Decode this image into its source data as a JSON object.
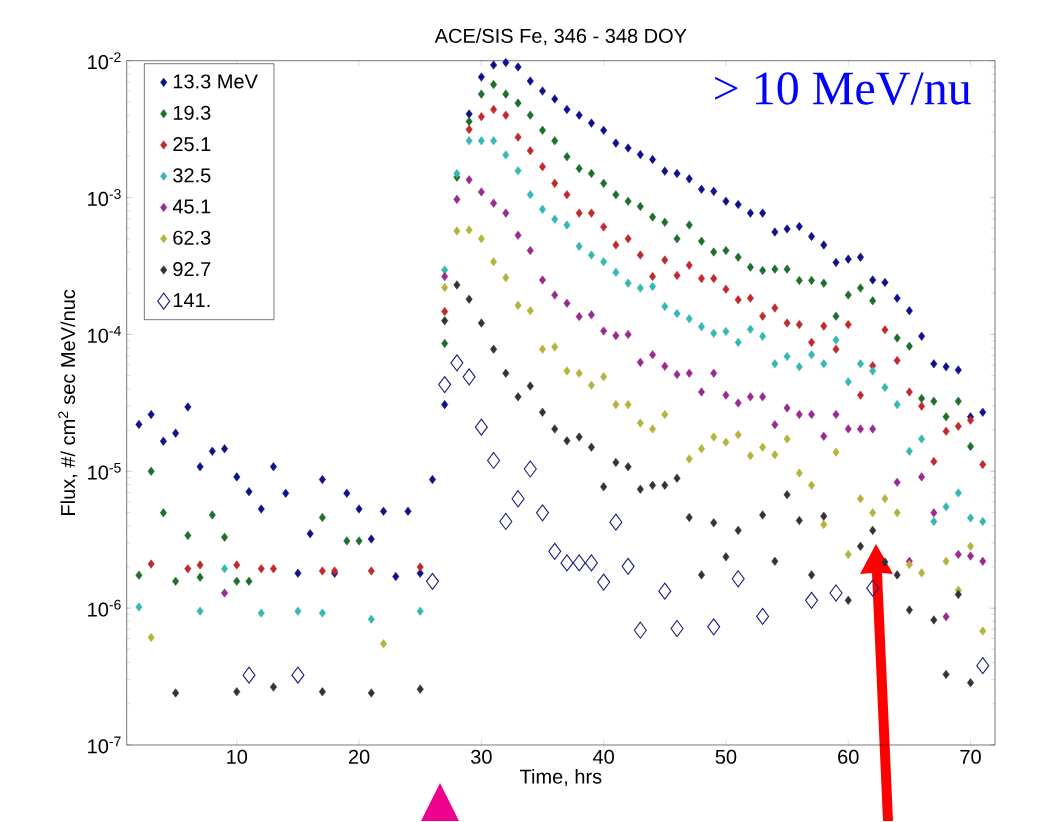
{
  "chart_data": {
    "type": "scatter",
    "title": "ACE/SIS Fe, 346 - 348  DOY",
    "xlabel": "Time, hrs",
    "ylabel": "Flux, #/ cm$^{2}$ sec MeV/nuc",
    "annotations": [
      "> 10 MeV/nu"
    ],
    "log": "y",
    "marker": "diamond",
    "legend": "top left",
    "xlim": [
      1,
      72
    ],
    "xticks": [
      10,
      20,
      30,
      40,
      50,
      60,
      70
    ],
    "ylim": [
      1e-07,
      0.01
    ],
    "yticks": [
      {
        "value": 1e-07,
        "label": "10$^{-7}$"
      },
      {
        "value": 1e-06,
        "label": "10$^{-6}$"
      },
      {
        "value": 1e-05,
        "label": "10$^{-5}$"
      },
      {
        "value": 0.0001,
        "label": "10$^{-4}$"
      },
      {
        "value": 0.001,
        "label": "10$^{-3}$"
      },
      {
        "value": 0.01,
        "label": "10$^{-2}$"
      }
    ],
    "series": [
      {
        "name": "13.3 MeV",
        "color": "#10108c",
        "x": [
          2,
          3,
          4,
          5,
          6,
          7,
          8,
          9,
          10,
          11,
          12,
          13,
          14,
          15,
          16,
          17,
          18,
          19,
          20,
          21,
          22,
          23,
          24,
          25,
          26,
          27,
          29,
          30,
          31,
          32,
          33,
          34,
          35,
          36,
          37,
          38,
          39,
          40,
          41,
          42,
          43,
          44,
          45,
          46,
          47,
          48,
          49,
          50,
          51,
          52,
          53,
          54,
          55,
          56,
          57,
          58,
          59,
          60,
          61,
          62,
          63,
          64,
          65,
          66,
          67,
          68,
          69,
          70,
          71
        ],
        "values": [
          2.2e-05,
          2.6e-05,
          1.66e-05,
          1.9e-05,
          2.95e-05,
          1.08e-05,
          1.4e-05,
          1.46e-05,
          9.1e-06,
          7.1e-06,
          5.3e-06,
          1.08e-05,
          6.9e-06,
          1.8e-06,
          3.5e-06,
          8.7e-06,
          1.8e-06,
          6.9e-06,
          5.3e-06,
          3.2e-06,
          5.1e-06,
          1.7e-06,
          5.1e-06,
          1.8e-06,
          8.7e-06,
          3.07e-05,
          0.00408,
          0.0076,
          0.0093,
          0.0097,
          0.009,
          0.0071,
          0.006,
          0.00525,
          0.0044,
          0.004,
          0.0035,
          0.0031,
          0.0025,
          0.0023,
          0.00206,
          0.0019,
          0.00156,
          0.0015,
          0.00137,
          0.00115,
          0.00111,
          0.00094,
          0.00089,
          0.00077,
          0.00077,
          0.00056,
          0.00059,
          0.000615,
          0.00052,
          0.00045,
          0.000336,
          0.000355,
          0.000367,
          0.00025,
          0.00024,
          0.000184,
          0.000149,
          9.7e-05,
          6.1e-05,
          5.8e-05,
          5.5e-05,
          2.5e-05,
          2.7e-05
        ]
      },
      {
        "name": "19.3",
        "color": "#1f6e2a",
        "x": [
          2,
          3,
          4,
          5,
          6,
          7,
          8,
          9,
          10,
          11,
          17,
          19,
          20,
          27,
          28,
          29,
          30,
          31,
          32,
          33,
          34,
          35,
          36,
          37,
          38,
          39,
          40,
          41,
          42,
          43,
          44,
          45,
          46,
          47,
          48,
          49,
          50,
          51,
          52,
          53,
          54,
          55,
          56,
          57,
          58,
          59,
          60,
          61,
          62,
          64,
          65,
          66,
          67,
          68,
          69,
          70
        ],
        "values": [
          1.74e-06,
          1e-05,
          4.97e-06,
          1.57e-06,
          3.4e-06,
          1.68e-06,
          4.8e-06,
          3.3e-06,
          1.57e-06,
          1.57e-06,
          4.6e-06,
          3.1e-06,
          3.1e-06,
          8.6e-05,
          0.00141,
          0.0036,
          0.0057,
          0.0067,
          0.0057,
          0.0049,
          0.004,
          0.0031,
          0.0026,
          0.00199,
          0.00163,
          0.0015,
          0.00127,
          0.00105,
          0.00094,
          0.00086,
          0.00072,
          0.00066,
          0.0005,
          0.00063,
          0.00048,
          0.0004,
          0.00041,
          0.000367,
          0.00031,
          0.000293,
          0.0003,
          0.0003,
          0.000248,
          0.000248,
          0.000237,
          0.000136,
          0.000194,
          0.000218,
          0.000176,
          9.4e-05,
          8.2e-05,
          3.4e-05,
          3.25e-05,
          2.5e-05,
          3.25e-05,
          1.52e-05
        ]
      },
      {
        "name": "25.1",
        "color": "#c02a2e",
        "x": [
          3,
          6,
          7,
          10,
          12,
          13,
          17,
          18,
          21,
          25,
          27,
          29,
          30,
          31,
          32,
          33,
          34,
          35,
          36,
          37,
          38,
          39,
          40,
          41,
          42,
          43,
          44,
          45,
          46,
          47,
          48,
          49,
          50,
          51,
          52,
          53,
          54,
          55,
          56,
          57,
          58,
          59,
          60,
          61,
          62,
          63,
          64,
          65,
          66,
          67,
          68,
          69,
          70,
          71
        ],
        "values": [
          2.1e-06,
          1.94e-06,
          2.07e-06,
          2.07e-06,
          1.94e-06,
          1.94e-06,
          1.87e-06,
          1.87e-06,
          1.87e-06,
          2e-06,
          0.000147,
          0.00315,
          0.0039,
          0.0044,
          0.004,
          0.00276,
          0.0022,
          0.00168,
          0.00127,
          0.00105,
          0.00077,
          0.00077,
          0.00061,
          0.00045,
          0.0005,
          0.00038,
          0.000265,
          0.00035,
          0.00027,
          0.00032,
          0.000256,
          0.000256,
          0.000214,
          0.000179,
          0.000184,
          0.000136,
          0.000156,
          0.000121,
          0.000118,
          8.75e-05,
          0.000115,
          7.8e-05,
          0.000118,
          3.6e-05,
          5.9e-05,
          0.000108,
          6.45e-05,
          3.8e-05,
          2.99e-05,
          1.18e-05,
          1.96e-05,
          2.13e-05,
          2.36e-05,
          1.12e-05
        ]
      },
      {
        "name": "32.5",
        "color": "#35b8b4",
        "x": [
          2,
          7,
          9,
          12,
          15,
          17,
          21,
          25,
          27,
          28,
          29,
          30,
          31,
          32,
          33,
          34,
          35,
          36,
          37,
          38,
          39,
          40,
          41,
          42,
          43,
          44,
          45,
          46,
          47,
          48,
          49,
          50,
          51,
          52,
          53,
          54,
          55,
          56,
          57,
          58,
          59,
          60,
          61,
          62,
          63,
          64,
          65,
          66,
          67,
          68,
          69,
          70,
          71
        ],
        "values": [
          1.02e-06,
          9.5e-07,
          1.94e-06,
          9.2e-07,
          9.5e-07,
          9.2e-07,
          8.3e-07,
          9.5e-07,
          0.000296,
          0.0015,
          0.0026,
          0.0026,
          0.0026,
          0.00205,
          0.00157,
          0.00105,
          0.00082,
          0.000695,
          0.00063,
          0.00044,
          0.00038,
          0.00034,
          0.000284,
          0.000237,
          0.000218,
          0.000224,
          0.00016,
          0.000142,
          0.00013,
          0.000114,
          0.000102,
          0.000105,
          8.75e-05,
          0.000109,
          9.7e-05,
          6.1e-05,
          6.9e-05,
          5.8e-05,
          7.1e-05,
          6.1e-05,
          9.1e-05,
          4.5e-05,
          6.1e-05,
          5.4e-05,
          4.1e-05,
          3.07e-05,
          1.4e-05,
          1.72e-05,
          4.3e-06,
          5.5e-06,
          6.95e-06,
          4.56e-06,
          4.3e-06
        ]
      },
      {
        "name": "45.1",
        "color": "#982a90",
        "x": [
          9,
          27,
          28,
          29,
          30,
          31,
          32,
          33,
          34,
          35,
          36,
          37,
          38,
          39,
          40,
          41,
          42,
          43,
          44,
          45,
          46,
          47,
          48,
          49,
          50,
          51,
          52,
          53,
          54,
          55,
          56,
          57,
          58,
          59,
          60,
          61,
          62,
          64,
          65,
          66,
          67,
          68,
          69,
          70,
          71
        ],
        "values": [
          1.29e-06,
          0.000265,
          0.00097,
          0.00135,
          0.0011,
          0.00091,
          0.00077,
          0.00053,
          0.00041,
          0.00025,
          0.000194,
          0.000169,
          0.000135,
          0.000139,
          0.000106,
          9.8e-05,
          0.0001,
          6.25e-05,
          7.1e-05,
          5.85e-05,
          5.1e-05,
          5.2e-05,
          3.8e-05,
          5.2e-05,
          3.6e-05,
          3.15e-05,
          3.5e-05,
          3.5e-05,
          2.19e-05,
          2.9e-05,
          2.6e-05,
          2.6e-05,
          1.8e-05,
          2.6e-05,
          2.04e-05,
          2.04e-05,
          2.04e-05,
          8.3e-06,
          2.2e-06,
          9.1e-06,
          4.97e-06,
          8.65e-07,
          2.47e-06,
          2.4e-06,
          2.2e-06
        ]
      },
      {
        "name": "62.3",
        "color": "#b4b43c",
        "x": [
          3,
          22,
          27,
          28,
          29,
          30,
          31,
          32,
          33,
          34,
          35,
          36,
          37,
          38,
          39,
          40,
          41,
          42,
          43,
          44,
          45,
          47,
          48,
          49,
          50,
          51,
          52,
          53,
          54,
          55,
          56,
          57,
          58,
          59,
          60,
          61,
          62,
          63,
          64,
          65,
          66,
          68,
          69,
          70,
          71
        ],
        "values": [
          6.1e-07,
          5.5e-07,
          0.00022,
          0.00057,
          0.00058,
          0.0005,
          0.00034,
          0.00026,
          0.000163,
          0.000149,
          7.8e-05,
          8.1e-05,
          5.4e-05,
          5.2e-05,
          4.25e-05,
          4.9e-05,
          3.07e-05,
          3.07e-05,
          2.25e-05,
          2.04e-05,
          2.6e-05,
          1.23e-05,
          1.46e-05,
          1.78e-05,
          1.63e-05,
          1.85e-05,
          1.3e-05,
          1.5e-05,
          1.32e-05,
          1.72e-05,
          9.7e-06,
          7.9e-06,
          4.08e-06,
          1.38e-05,
          2.47e-06,
          6.3e-06,
          4.97e-06,
          6.3e-06,
          4.97e-06,
          2.08e-06,
          1.81e-06,
          2.2e-06,
          1.35e-06,
          2.83e-06,
          6.8e-07
        ]
      },
      {
        "name": "92.7",
        "color": "#333333",
        "x": [
          5,
          10,
          13,
          17,
          21,
          25,
          27,
          28,
          29,
          30,
          31,
          32,
          33,
          34,
          35,
          36,
          37,
          38,
          39,
          40,
          41,
          42,
          43,
          44,
          45,
          46,
          47,
          48,
          49,
          50,
          51,
          53,
          54,
          55,
          56,
          57,
          58,
          60,
          61,
          62,
          63,
          64,
          65,
          67,
          68,
          69,
          70
        ],
        "values": [
          2.4e-07,
          2.45e-07,
          2.65e-07,
          2.45e-07,
          2.4e-07,
          2.56e-07,
          0.000126,
          0.00023,
          0.000181,
          0.000121,
          7.8e-05,
          5.2e-05,
          3.5e-05,
          4.2e-05,
          2.7e-05,
          2.04e-05,
          1.67e-05,
          1.78e-05,
          1.5e-05,
          7.7e-06,
          1.16e-05,
          1.08e-05,
          7.4e-06,
          7.9e-06,
          7.9e-06,
          8.9e-06,
          4.6e-06,
          1.75e-06,
          4.2e-06,
          2.37e-06,
          3.7e-06,
          4.8e-06,
          2.2e-06,
          6.75e-06,
          4.37e-06,
          1.75e-06,
          4.7e-06,
          1.14e-06,
          2.83e-06,
          3.7e-06,
          2.17e-06,
          1.75e-06,
          9.7e-07,
          8.2e-07,
          3.28e-07,
          1.26e-06,
          2.85e-07
        ]
      },
      {
        "name": "141.",
        "color": "#1a1a78",
        "marker": "diamond",
        "x": [
          11,
          15,
          26,
          27,
          28,
          29,
          30,
          31,
          32,
          33,
          34,
          35,
          36,
          37,
          38,
          39,
          40,
          41,
          42,
          43,
          45,
          46,
          49,
          51,
          53,
          57,
          59,
          62,
          71
        ],
        "values": [
          3.24e-07,
          3.24e-07,
          1.57e-06,
          4.3e-05,
          6.2e-05,
          4.9e-05,
          2.1e-05,
          1.2e-05,
          4.3e-06,
          6.3e-06,
          1.04e-05,
          4.97e-06,
          2.6e-06,
          2.14e-06,
          2.14e-06,
          2.14e-06,
          1.55e-06,
          4.25e-06,
          2.02e-06,
          6.9e-07,
          1.33e-06,
          7.1e-07,
          7.3e-07,
          1.64e-06,
          8.7e-07,
          1.14e-06,
          1.29e-06,
          1.4e-06,
          3.8e-07
        ]
      }
    ]
  }
}
